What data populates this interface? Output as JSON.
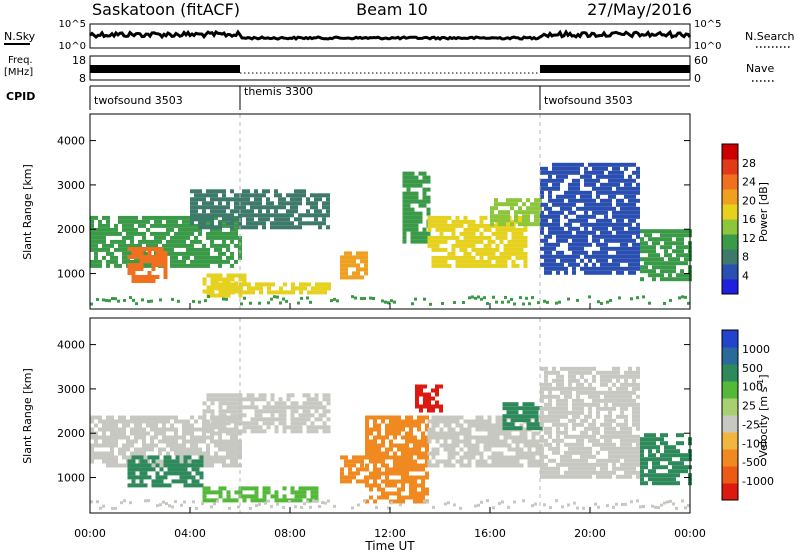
{
  "header": {
    "site": "Saskatoon (fitACF)",
    "beam": "Beam 10",
    "date": "27/May/2016"
  },
  "left_labels": {
    "nsky": "N.Sky",
    "freq_line1": "Freq.",
    "freq_line2": "[MHz]",
    "cpid": "CPID"
  },
  "right_labels": {
    "nsearch": "N.Search",
    "nave": "Nave"
  },
  "noise_axis": {
    "left_ticks": [
      "10^5",
      "10^0"
    ],
    "right_ticks": [
      "10^5",
      "10^0"
    ]
  },
  "freq_axis": {
    "left_ticks": [
      "18",
      "8"
    ],
    "right_ticks": [
      "60",
      "0"
    ]
  },
  "cpid_segments": [
    {
      "label": "twofsound 3503",
      "start_hour": 0
    },
    {
      "label": "themis 3300",
      "start_hour": 6
    },
    {
      "label": "twofsound 3503",
      "start_hour": 18
    }
  ],
  "xlabel": "Time UT",
  "x_ticks": [
    "00:00",
    "04:00",
    "08:00",
    "12:00",
    "16:00",
    "20:00",
    "00:00"
  ],
  "colors": {
    "power": [
      "#1f1fe0",
      "#2a4fb0",
      "#3d7a6a",
      "#3a9a48",
      "#8cc63a",
      "#e6d21e",
      "#f0a020",
      "#f07020",
      "#e03a18",
      "#cc0000"
    ],
    "velocity": [
      "#2244cc",
      "#2a6a9a",
      "#2e8a5a",
      "#54b83a",
      "#a8d070",
      "#c8c8c2",
      "#f2b640",
      "#f08a20",
      "#ec5a18",
      "#dd1a10"
    ]
  },
  "chart_data": [
    {
      "type": "heatmap",
      "title": "Power",
      "ylabel": "Slant Range [km]",
      "xlim": [
        0,
        24
      ],
      "ylim": [
        200,
        4600
      ],
      "y_ticks": [
        1000,
        2000,
        3000,
        4000
      ],
      "colorbar_label": "Power [dB]",
      "colorbar_ticks": [
        4,
        8,
        12,
        16,
        20,
        24,
        28
      ],
      "colorbar_range": [
        0,
        32
      ],
      "bands": [
        {
          "t0": 0,
          "t1": 6,
          "r0": 1200,
          "r1": 2300,
          "level": 12
        },
        {
          "t0": 1.5,
          "t1": 3,
          "r0": 800,
          "r1": 1600,
          "level": 24
        },
        {
          "t0": 4.5,
          "t1": 6.2,
          "r0": 500,
          "r1": 1000,
          "level": 16
        },
        {
          "t0": 4,
          "t1": 9.5,
          "r0": 2000,
          "r1": 2900,
          "level": 8
        },
        {
          "t0": 5,
          "t1": 9.5,
          "r0": 550,
          "r1": 800,
          "level": 18
        },
        {
          "t0": 10,
          "t1": 11,
          "r0": 900,
          "r1": 1500,
          "level": 20
        },
        {
          "t0": 12.5,
          "t1": 13.5,
          "r0": 1700,
          "r1": 3300,
          "level": 10
        },
        {
          "t0": 13.5,
          "t1": 17.5,
          "r0": 1200,
          "r1": 2300,
          "level": 18
        },
        {
          "t0": 16,
          "t1": 18,
          "r0": 2100,
          "r1": 2700,
          "level": 14
        },
        {
          "t0": 18,
          "t1": 22,
          "r0": 1000,
          "r1": 3500,
          "level": 6
        },
        {
          "t0": 22,
          "t1": 24,
          "r0": 900,
          "r1": 2000,
          "level": 10
        }
      ]
    },
    {
      "type": "heatmap",
      "title": "Velocity",
      "ylabel": "Slant Range [km]",
      "xlim": [
        0,
        24
      ],
      "ylim": [
        200,
        4600
      ],
      "y_ticks": [
        1000,
        2000,
        3000,
        4000
      ],
      "colorbar_label": "Velocity [m s-1]",
      "colorbar_ticks": [
        1000,
        500,
        100,
        25,
        -25,
        -100,
        -500,
        -1000
      ],
      "bands": [
        {
          "t0": 0,
          "t1": 6,
          "r0": 1300,
          "r1": 2400,
          "level": 0
        },
        {
          "t0": 1.5,
          "t1": 4.5,
          "r0": 800,
          "r1": 1500,
          "level": 150
        },
        {
          "t0": 4.5,
          "t1": 9,
          "r0": 500,
          "r1": 800,
          "level": 80
        },
        {
          "t0": 4.5,
          "t1": 9.5,
          "r0": 2000,
          "r1": 2900,
          "level": 0
        },
        {
          "t0": 10,
          "t1": 11,
          "r0": 900,
          "r1": 1500,
          "level": -500
        },
        {
          "t0": 11,
          "t1": 13.5,
          "r0": 500,
          "r1": 2400,
          "level": -150
        },
        {
          "t0": 13.5,
          "t1": 18,
          "r0": 1300,
          "r1": 2400,
          "level": 0
        },
        {
          "t0": 13,
          "t1": 14,
          "r0": 2500,
          "r1": 3100,
          "level": -600
        },
        {
          "t0": 16.5,
          "t1": 18,
          "r0": 2100,
          "r1": 2700,
          "level": 300
        },
        {
          "t0": 18,
          "t1": 22,
          "r0": 1000,
          "r1": 3500,
          "level": 0
        },
        {
          "t0": 22,
          "t1": 24,
          "r0": 900,
          "r1": 2000,
          "level": 400
        }
      ]
    }
  ]
}
